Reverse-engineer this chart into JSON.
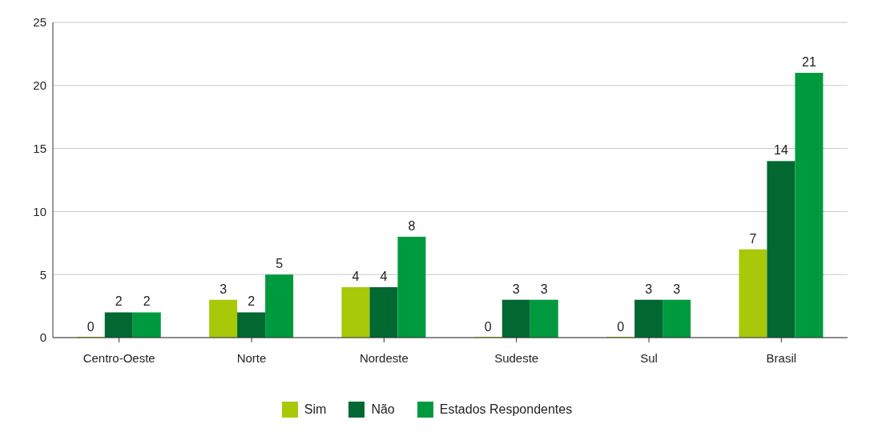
{
  "chart_data": {
    "type": "bar",
    "categories": [
      "Centro-Oeste",
      "Norte",
      "Nordeste",
      "Sudeste",
      "Sul",
      "Brasil"
    ],
    "series": [
      {
        "name": "Sim",
        "color": "#a8c80a",
        "values": [
          0,
          3,
          4,
          0,
          0,
          7
        ]
      },
      {
        "name": "Não",
        "color": "#006830",
        "values": [
          2,
          2,
          4,
          3,
          3,
          14
        ]
      },
      {
        "name": "Estados Respondentes",
        "color": "#009a3e",
        "values": [
          2,
          5,
          8,
          3,
          3,
          21
        ]
      }
    ],
    "ylim": [
      0,
      25
    ],
    "yticks": [
      0,
      5,
      10,
      15,
      20,
      25
    ],
    "grid": "y",
    "legend": "bottom",
    "data_labels": true
  }
}
